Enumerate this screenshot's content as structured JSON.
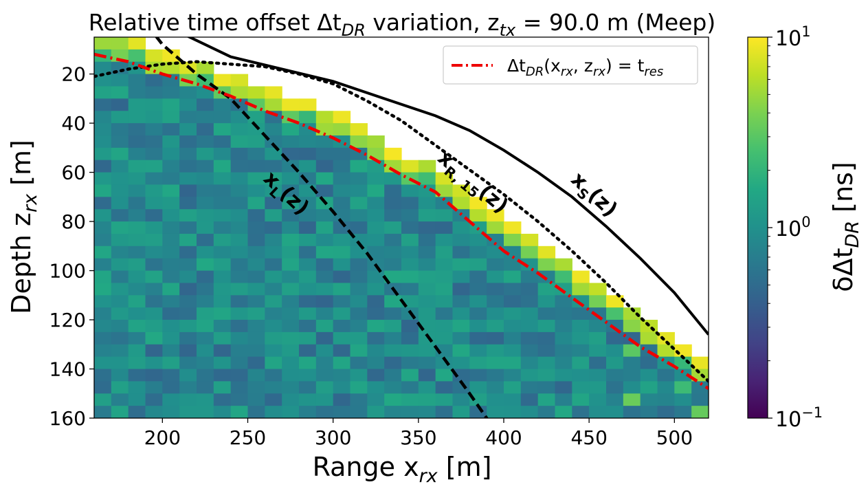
{
  "chart_data": {
    "type": "heatmap",
    "title": {
      "main": "Relative time offset Δt",
      "sub": "DR",
      "mid": " variation, z",
      "sub2": "tx",
      "rest": " = 90.0 m (Meep)"
    },
    "xlabel": {
      "main": "Range x",
      "sub": "rx",
      "rest": " [m]"
    },
    "ylabel": {
      "main": "Depth z",
      "sub": "rx",
      "rest": " [m]"
    },
    "xlim": [
      160,
      520
    ],
    "ylim": [
      5,
      160
    ],
    "y_inverted": true,
    "x_ticks": [
      200,
      250,
      300,
      350,
      400,
      450,
      500
    ],
    "x_tick_labels": [
      "200",
      "250",
      "300",
      "350",
      "400",
      "450",
      "500"
    ],
    "y_ticks": [
      20,
      40,
      60,
      80,
      100,
      120,
      140,
      160
    ],
    "y_tick_labels": [
      "20",
      "40",
      "60",
      "80",
      "100",
      "120",
      "140",
      "160"
    ],
    "grid": {
      "x_start": 160,
      "x_step": 10,
      "x_count": 36,
      "z_start": 5,
      "z_step": 5,
      "z_count": 31
    },
    "colorbar": {
      "scale": "log",
      "min": 0.1,
      "max": 10,
      "colormap": "viridis",
      "tick_values": [
        0.1,
        1,
        10
      ],
      "tick_labels": [
        {
          "base": "10",
          "exp": "−1"
        },
        {
          "base": "10",
          "exp": "0"
        },
        {
          "base": "10",
          "exp": "1"
        }
      ],
      "label": {
        "main": "δΔt",
        "sub": "DR",
        "rest": " [ns]"
      }
    },
    "curves": [
      {
        "name": "x_s(z)",
        "style": "solid",
        "color": "#000000",
        "points": [
          [
            180,
            -5
          ],
          [
            210,
            3
          ],
          [
            240,
            13
          ],
          [
            270,
            18
          ],
          [
            300,
            23
          ],
          [
            330,
            30
          ],
          [
            360,
            37
          ],
          [
            380,
            43
          ],
          [
            400,
            51
          ],
          [
            420,
            60
          ],
          [
            440,
            70
          ],
          [
            460,
            82
          ],
          [
            480,
            95
          ],
          [
            500,
            109
          ],
          [
            520,
            126
          ]
        ]
      },
      {
        "name": "x_R,15(z)",
        "style": "dotted",
        "color": "#000000",
        "points": [
          [
            160,
            21
          ],
          [
            180,
            18
          ],
          [
            200,
            16
          ],
          [
            220,
            15
          ],
          [
            240,
            16
          ],
          [
            260,
            17
          ],
          [
            280,
            20
          ],
          [
            300,
            24
          ],
          [
            320,
            31
          ],
          [
            340,
            39
          ],
          [
            360,
            49
          ],
          [
            380,
            59
          ],
          [
            400,
            69
          ],
          [
            420,
            80
          ],
          [
            440,
            92
          ],
          [
            460,
            105
          ],
          [
            480,
            119
          ],
          [
            500,
            132
          ],
          [
            520,
            145
          ]
        ]
      },
      {
        "name": "x_L(z)",
        "style": "dashed",
        "color": "#000000",
        "points": [
          [
            160,
            -28
          ],
          [
            180,
            -10
          ],
          [
            200,
            8
          ],
          [
            220,
            20
          ],
          [
            240,
            30
          ],
          [
            260,
            45
          ],
          [
            280,
            60
          ],
          [
            300,
            76
          ],
          [
            320,
            93
          ],
          [
            340,
            112
          ],
          [
            360,
            131
          ],
          [
            380,
            150
          ],
          [
            395,
            165
          ]
        ]
      },
      {
        "name": "Δt_DR(x_rx, z_rx) = t_res",
        "style": "dashdot",
        "color": "#ee0000",
        "points": [
          [
            160,
            12
          ],
          [
            180,
            15
          ],
          [
            200,
            20
          ],
          [
            220,
            24
          ],
          [
            240,
            29
          ],
          [
            260,
            35
          ],
          [
            280,
            40
          ],
          [
            300,
            46
          ],
          [
            320,
            53
          ],
          [
            340,
            61
          ],
          [
            360,
            68
          ],
          [
            380,
            80
          ],
          [
            400,
            92
          ],
          [
            420,
            101
          ],
          [
            440,
            111
          ],
          [
            460,
            121
          ],
          [
            480,
            131
          ],
          [
            500,
            139
          ],
          [
            520,
            148
          ]
        ]
      }
    ],
    "curve_labels": [
      {
        "name": "xs-curve-label",
        "text": "x",
        "sub": "S",
        "rest": "(z)"
      },
      {
        "name": "xr-curve-label",
        "text": "x",
        "sub": "R, 15",
        "rest": "(z)"
      },
      {
        "name": "xl-curve-label",
        "text": "x",
        "sub": "L",
        "rest": "(z)"
      }
    ],
    "legend": {
      "position": "top-right",
      "entries": [
        {
          "label": {
            "a": "Δt",
            "b": "DR",
            "c": "(x",
            "d": "rx",
            "e": ", z",
            "f": "rx",
            "g": ") = t",
            "h": "res",
            "i": ""
          },
          "color": "#ee0000",
          "style": "dashdot"
        }
      ]
    },
    "cells": {
      "note": "Cell values (ns) on the 10 m × 5 m grid; white (no data) above the upper boundary; hot yellow band along the boundary.",
      "background_value": 0.9,
      "hot_value": 9.0
    }
  }
}
